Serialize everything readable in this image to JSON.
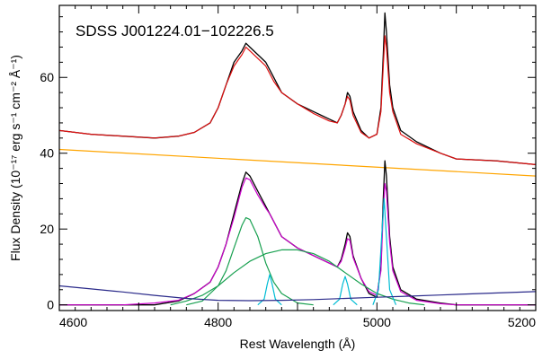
{
  "chart_data": {
    "type": "line",
    "title": "",
    "annotation": "SDSS J001224.01−102226.5",
    "xlabel": "Rest Wavelength (Å)",
    "ylabel": "Flux Density (10⁻¹⁷ erg s⁻¹ cm⁻² Å⁻¹)",
    "xlim": [
      4600,
      5200
    ],
    "ylim": [
      -1.5,
      79
    ],
    "grid": false,
    "legend": "none",
    "xticks": [
      4600,
      4800,
      5000,
      5200
    ],
    "yticks": [
      0,
      20,
      40,
      60
    ],
    "series": [
      {
        "role": "observed-spectrum-top",
        "color": "#000000",
        "x": [
          4600,
          4640,
          4680,
          4720,
          4750,
          4770,
          4790,
          4800,
          4810,
          4820,
          4830,
          4835,
          4840,
          4850,
          4860,
          4865,
          4870,
          4880,
          4900,
          4920,
          4940,
          4950,
          4955,
          4960,
          4963,
          4966,
          4970,
          4980,
          4990,
          5000,
          5005,
          5008,
          5010,
          5012,
          5016,
          5020,
          5030,
          5050,
          5080,
          5100,
          5150,
          5200
        ],
        "y": [
          46,
          45,
          44.5,
          44,
          44.5,
          45.5,
          48,
          52,
          58,
          64,
          67,
          69,
          68,
          66,
          64,
          62,
          60,
          56,
          53,
          51,
          49,
          48,
          50,
          53,
          56,
          55,
          51,
          46,
          44,
          45,
          52,
          66,
          77,
          72,
          58,
          52,
          46,
          43,
          40,
          38.5,
          38,
          37
        ]
      },
      {
        "role": "model-fit-top",
        "color": "#e01010",
        "x": [
          4600,
          4640,
          4680,
          4720,
          4750,
          4770,
          4790,
          4800,
          4810,
          4820,
          4830,
          4835,
          4840,
          4850,
          4860,
          4865,
          4870,
          4880,
          4900,
          4920,
          4940,
          4950,
          4955,
          4960,
          4963,
          4966,
          4970,
          4980,
          4990,
          5000,
          5005,
          5008,
          5010,
          5012,
          5016,
          5020,
          5030,
          5050,
          5080,
          5100,
          5150,
          5200
        ],
        "y": [
          46,
          45,
          44.5,
          44,
          44.5,
          45.5,
          48,
          52,
          58,
          63,
          66,
          68,
          67,
          65,
          63,
          61,
          59,
          56,
          53,
          50.5,
          48.5,
          48,
          50,
          53,
          55,
          54,
          50,
          45.5,
          44,
          45,
          51,
          63,
          71,
          68,
          56,
          51,
          45,
          42.5,
          40,
          38.5,
          38,
          37
        ]
      },
      {
        "role": "power-law-continuum",
        "color": "#ffa500",
        "x": [
          4600,
          5200
        ],
        "y": [
          41,
          34
        ]
      },
      {
        "role": "observed-spectrum-residual",
        "color": "#000000",
        "x": [
          4600,
          4640,
          4680,
          4720,
          4750,
          4770,
          4790,
          4800,
          4810,
          4820,
          4830,
          4835,
          4840,
          4850,
          4860,
          4865,
          4870,
          4880,
          4900,
          4920,
          4940,
          4950,
          4955,
          4960,
          4963,
          4966,
          4970,
          4980,
          4990,
          5000,
          5005,
          5008,
          5010,
          5012,
          5016,
          5020,
          5030,
          5050,
          5080,
          5100,
          5150,
          5200
        ],
        "y": [
          0,
          0,
          0,
          0,
          1,
          3,
          6,
          10,
          16,
          24,
          32,
          35,
          34,
          30,
          26,
          24,
          22,
          18,
          15,
          13,
          11,
          10,
          12,
          16,
          19,
          18,
          13,
          7,
          3,
          2,
          10,
          28,
          38,
          34,
          18,
          10,
          4,
          1.5,
          0.5,
          0,
          0,
          0
        ]
      },
      {
        "role": "total-model-residual",
        "color": "#cc00cc",
        "x": [
          4600,
          4640,
          4680,
          4720,
          4750,
          4770,
          4790,
          4800,
          4810,
          4820,
          4830,
          4835,
          4840,
          4850,
          4860,
          4865,
          4870,
          4880,
          4900,
          4920,
          4940,
          4950,
          4955,
          4960,
          4963,
          4966,
          4970,
          4980,
          4990,
          5000,
          5005,
          5008,
          5010,
          5012,
          5016,
          5020,
          5030,
          5050,
          5080,
          5100,
          5150,
          5200
        ],
        "y": [
          0,
          0,
          0,
          0.5,
          1.2,
          3,
          6,
          10,
          16,
          23,
          31,
          33.5,
          33,
          29,
          25.5,
          24,
          22,
          18,
          15,
          13,
          11,
          10,
          11.5,
          15,
          17.5,
          17,
          12.5,
          7,
          3.5,
          2.5,
          9,
          25,
          32,
          30,
          16.5,
          9,
          3.5,
          1.2,
          0.3,
          0,
          0,
          0
        ]
      },
      {
        "role": "broad-component-1",
        "color": "#18a050",
        "x": [
          4760,
          4780,
          4800,
          4810,
          4820,
          4830,
          4835,
          4840,
          4850,
          4860,
          4870,
          4880,
          4900,
          4920
        ],
        "y": [
          0,
          1,
          5,
          9,
          15,
          21,
          23,
          22.5,
          18,
          11,
          6,
          3,
          0.5,
          0
        ]
      },
      {
        "role": "broad-component-2",
        "color": "#18a050",
        "x": [
          4740,
          4760,
          4780,
          4800,
          4820,
          4840,
          4860,
          4880,
          4900,
          4920,
          4940,
          4960,
          4980,
          5000,
          5020,
          5040,
          5060
        ],
        "y": [
          0,
          1,
          2.5,
          5,
          8.5,
          11.5,
          13.5,
          14.5,
          14.5,
          13.5,
          11.5,
          8.5,
          5.5,
          3,
          1.5,
          0.5,
          0
        ]
      },
      {
        "role": "narrow-line-4861",
        "color": "#00bcd4",
        "x": [
          4850,
          4858,
          4862,
          4865,
          4868,
          4872,
          4880
        ],
        "y": [
          0,
          1.5,
          5.5,
          8,
          5.5,
          1.5,
          0
        ]
      },
      {
        "role": "narrow-line-4959",
        "color": "#00bcd4",
        "x": [
          4945,
          4953,
          4957,
          4960,
          4963,
          4967,
          4975
        ],
        "y": [
          0,
          1.5,
          5.5,
          7.5,
          5.5,
          1.5,
          0
        ]
      },
      {
        "role": "narrow-line-5007",
        "color": "#00bcd4",
        "x": [
          4995,
          5002,
          5006,
          5009,
          5012,
          5016,
          5024
        ],
        "y": [
          0,
          4,
          18,
          28,
          18,
          4,
          0
        ]
      },
      {
        "role": "fe-ii-template",
        "color": "#2a2a8a",
        "x": [
          4600,
          4640,
          4680,
          4720,
          4760,
          4800,
          4840,
          4880,
          4920,
          4960,
          5000,
          5040,
          5080,
          5120,
          5160,
          5200
        ],
        "y": [
          5,
          4.2,
          3.4,
          2.5,
          1.7,
          1.2,
          1.1,
          1.2,
          1.4,
          1.7,
          2.0,
          2.3,
          2.6,
          2.9,
          3.2,
          3.5
        ]
      }
    ]
  }
}
